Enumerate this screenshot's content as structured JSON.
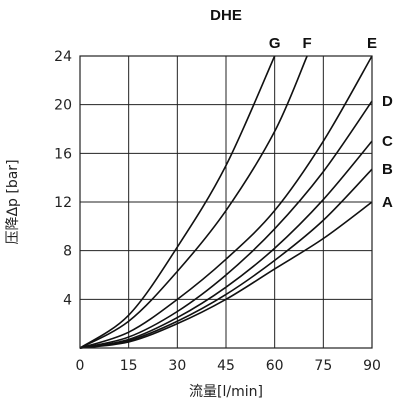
{
  "chart_data": {
    "type": "line",
    "title": "DHE",
    "xlabel": "流量[l/min]",
    "ylabel": "压降Δp [bar]",
    "x_ticks": [
      "0",
      "15",
      "30",
      "45",
      "60",
      "75",
      "90"
    ],
    "y_ticks": [
      "4",
      "8",
      "12",
      "16",
      "20",
      "24"
    ],
    "xlim": [
      0,
      90
    ],
    "ylim": [
      0,
      24
    ],
    "grid": true,
    "series": [
      {
        "name": "A",
        "x": [
          0,
          15,
          30,
          45,
          60,
          75,
          90
        ],
        "y": [
          0,
          0.5,
          2.0,
          4.0,
          6.5,
          9.0,
          12.0
        ]
      },
      {
        "name": "B",
        "x": [
          0,
          15,
          30,
          45,
          60,
          75,
          90
        ],
        "y": [
          0,
          0.6,
          2.2,
          4.4,
          7.2,
          10.5,
          14.7
        ]
      },
      {
        "name": "C",
        "x": [
          0,
          15,
          30,
          45,
          60,
          75,
          90
        ],
        "y": [
          0,
          0.7,
          2.5,
          5.0,
          8.2,
          12.2,
          17.0
        ]
      },
      {
        "name": "D",
        "x": [
          0,
          15,
          30,
          45,
          60,
          75,
          90
        ],
        "y": [
          0,
          0.9,
          3.0,
          6.0,
          9.8,
          14.5,
          20.3
        ]
      },
      {
        "name": "E",
        "x": [
          0,
          15,
          30,
          45,
          60,
          75,
          90
        ],
        "y": [
          0,
          1.3,
          4.0,
          7.3,
          11.3,
          17.0,
          24.0
        ]
      },
      {
        "name": "F",
        "x": [
          0,
          15,
          30,
          45,
          60,
          70
        ],
        "y": [
          0,
          2.2,
          6.3,
          11.3,
          17.8,
          24.0
        ]
      },
      {
        "name": "G",
        "x": [
          0,
          15,
          30,
          45,
          60
        ],
        "y": [
          0,
          2.7,
          8.3,
          15.0,
          24.0
        ]
      }
    ]
  }
}
